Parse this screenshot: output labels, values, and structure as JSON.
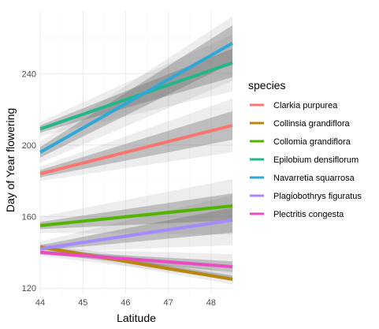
{
  "chart_data": {
    "type": "line",
    "title": "",
    "xlabel": "Latitude",
    "ylabel": "Day of Year flowering",
    "xlim": [
      44,
      48.5
    ],
    "ylim": [
      117,
      275
    ],
    "x_ticks": [
      44,
      45,
      46,
      47,
      48
    ],
    "y_ticks": [
      120,
      160,
      200,
      240
    ],
    "grid": true,
    "legend": {
      "title": "species",
      "position": "right"
    },
    "series": [
      {
        "name": "Clarkia purpurea",
        "color": "#F8766D",
        "x": [
          44,
          48.5
        ],
        "y": [
          184,
          211
        ],
        "ci_inner": {
          "lower": [
            182,
            203
          ],
          "upper": [
            186,
            219
          ]
        },
        "ci_outer": {
          "lower": [
            180,
            196
          ],
          "upper": [
            188,
            226
          ]
        }
      },
      {
        "name": "Collinsia grandiflora",
        "color": "#B8860B",
        "x": [
          44,
          48.5
        ],
        "y": [
          143,
          125
        ],
        "ci_inner": {
          "lower": [
            142,
            124
          ],
          "upper": [
            144,
            127
          ]
        },
        "ci_outer": {
          "lower": [
            141,
            122
          ],
          "upper": [
            145,
            129
          ]
        }
      },
      {
        "name": "Collomia grandiflora",
        "color": "#53B400",
        "x": [
          44,
          48.5
        ],
        "y": [
          155,
          166
        ],
        "ci_inner": {
          "lower": [
            153,
            158
          ],
          "upper": [
            157,
            173
          ]
        },
        "ci_outer": {
          "lower": [
            151,
            150
          ],
          "upper": [
            160,
            181
          ]
        }
      },
      {
        "name": "Epilobium densiflorum",
        "color": "#22B78A",
        "x": [
          44,
          48.5
        ],
        "y": [
          209,
          246
        ],
        "ci_inner": {
          "lower": [
            207,
            238
          ],
          "upper": [
            211,
            254
          ]
        },
        "ci_outer": {
          "lower": [
            205,
            230
          ],
          "upper": [
            213,
            262
          ]
        }
      },
      {
        "name": "Navarretia squarrosa",
        "color": "#2CA8D9",
        "x": [
          44,
          48.5
        ],
        "y": [
          196,
          257
        ],
        "ci_inner": {
          "lower": [
            193,
            246
          ],
          "upper": [
            199,
            267
          ]
        },
        "ci_outer": {
          "lower": [
            190,
            236
          ],
          "upper": [
            202,
            272
          ]
        }
      },
      {
        "name": "Plagiobothrys figuratus",
        "color": "#A58AFF",
        "x": [
          44,
          48.5
        ],
        "y": [
          142,
          158
        ],
        "ci_inner": {
          "lower": [
            141,
            151
          ],
          "upper": [
            144,
            165
          ]
        },
        "ci_outer": {
          "lower": [
            140,
            144
          ],
          "upper": [
            146,
            172
          ]
        }
      },
      {
        "name": "Plectritis congesta",
        "color": "#E84BC4",
        "x": [
          44,
          48.5
        ],
        "y": [
          140,
          132
        ],
        "ci_inner": {
          "lower": [
            139,
            129
          ],
          "upper": [
            141,
            135
          ]
        },
        "ci_outer": {
          "lower": [
            138,
            125
          ],
          "upper": [
            142,
            139
          ]
        }
      }
    ]
  }
}
